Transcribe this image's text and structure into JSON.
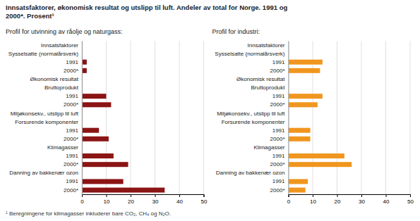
{
  "chart_data": [
    {
      "type": "bar",
      "orientation": "horizontal",
      "title": [
        "Innsatsfaktorer, økonomisk resultat og utslipp til luft. Andeler av total for Norge. 1991 og",
        "2000*. Prosent¹"
      ],
      "subtitle": "Profil for utvinning av råolje og naturgass:",
      "annotations": [
        "¹ Beregningene for klimagasser inkluderer bare CO₂, CH₄ og N₂O."
      ],
      "categories": [
        "Innsatsfaktorer",
        "Sysselsatte (normalårsverk)",
        "1991",
        "2000*",
        "Økonomisk resultat",
        "Bruttoprodukt",
        "1991",
        "2000*",
        "Miljøkonsekv., utslipp til luft",
        "Forsurende komponenter",
        "1991",
        "2000*",
        "Klimagasser",
        "1991",
        "2000*",
        "Danning av bakkenær ozon",
        "1991",
        "2000*"
      ],
      "values": [
        null,
        null,
        2.0,
        2.0,
        null,
        null,
        10.0,
        12.0,
        null,
        null,
        7.0,
        11.0,
        null,
        13.0,
        19.0,
        null,
        17.0,
        34.0
      ],
      "color": "#8B1414",
      "xlim": [
        0,
        50
      ],
      "xticks": [
        0,
        10,
        20,
        30,
        40,
        50
      ],
      "grid": true
    },
    {
      "type": "bar",
      "orientation": "horizontal",
      "subtitle": "Profil for industri:",
      "categories": [
        "Innsatsfaktorer",
        "Sysselsatte (normalårsverk)",
        "1991",
        "2000*",
        "Økonomisk resultat",
        "Bruttoprodukt",
        "1991",
        "2000*",
        "Miljøkonsekv., utslipp til luft",
        "Forsurende komponenter",
        "1991",
        "2000*",
        "Klimagasser",
        "1991",
        "2000*",
        "Danning av bakkenær ozon",
        "1991",
        "2000*"
      ],
      "values": [
        null,
        null,
        14.0,
        13.0,
        null,
        null,
        14.0,
        12.0,
        null,
        null,
        9.0,
        9.0,
        null,
        23.0,
        26.0,
        null,
        8.0,
        7.0
      ],
      "color": "#F0961E",
      "xlim": [
        0,
        50
      ],
      "xticks": [
        0,
        10,
        20,
        30,
        40,
        50
      ],
      "grid": true
    }
  ]
}
